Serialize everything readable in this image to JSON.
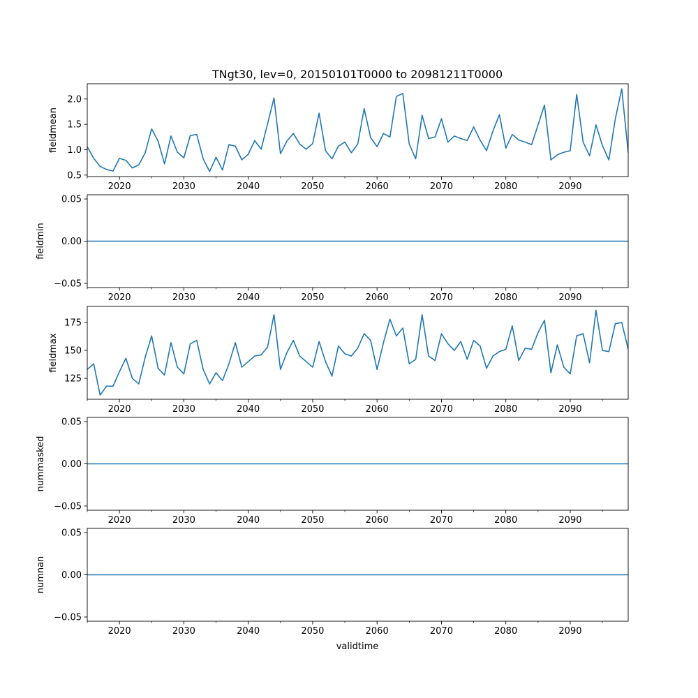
{
  "figure": {
    "title": "TNgt30, lev=0, 20150101T0000 to 20981211T0000",
    "xlabel": "validtime",
    "line_color": "#1f77b4"
  },
  "chart_data": [
    {
      "type": "line",
      "ylabel": "fieldmean",
      "xlim": [
        2015,
        2099
      ],
      "ylim": [
        0.47,
        2.3
      ],
      "x_ticks": [
        2020,
        2030,
        2040,
        2050,
        2060,
        2070,
        2080,
        2090
      ],
      "x_tick_labels": [
        "2020",
        "2030",
        "2040",
        "2050",
        "2060",
        "2070",
        "2080",
        "2090"
      ],
      "y_ticks": [
        0.5,
        1.0,
        1.5,
        2.0
      ],
      "y_tick_labels": [
        "0.5",
        "1.0",
        "1.5",
        "2.0"
      ],
      "x": [
        2015,
        2016,
        2017,
        2018,
        2019,
        2020,
        2021,
        2022,
        2023,
        2024,
        2025,
        2026,
        2027,
        2028,
        2029,
        2030,
        2031,
        2032,
        2033,
        2034,
        2035,
        2036,
        2037,
        2038,
        2039,
        2040,
        2041,
        2042,
        2043,
        2044,
        2045,
        2046,
        2047,
        2048,
        2049,
        2050,
        2051,
        2052,
        2053,
        2054,
        2055,
        2056,
        2057,
        2058,
        2059,
        2060,
        2061,
        2062,
        2063,
        2064,
        2065,
        2066,
        2067,
        2068,
        2069,
        2070,
        2071,
        2072,
        2073,
        2074,
        2075,
        2076,
        2077,
        2078,
        2079,
        2080,
        2081,
        2082,
        2083,
        2084,
        2085,
        2086,
        2087,
        2088,
        2089,
        2090,
        2091,
        2092,
        2093,
        2094,
        2095,
        2096,
        2097,
        2098,
        2099
      ],
      "values": [
        1.06,
        0.83,
        0.67,
        0.61,
        0.58,
        0.83,
        0.79,
        0.64,
        0.7,
        0.94,
        1.41,
        1.17,
        0.72,
        1.27,
        0.95,
        0.84,
        1.28,
        1.3,
        0.82,
        0.57,
        0.85,
        0.6,
        1.1,
        1.07,
        0.8,
        0.91,
        1.18,
        1.01,
        1.51,
        2.02,
        0.92,
        1.17,
        1.32,
        1.11,
        1.01,
        1.12,
        1.72,
        0.98,
        0.82,
        1.07,
        1.15,
        0.94,
        1.11,
        1.81,
        1.24,
        1.06,
        1.32,
        1.25,
        2.05,
        2.11,
        1.11,
        0.82,
        1.68,
        1.22,
        1.25,
        1.61,
        1.15,
        1.27,
        1.22,
        1.18,
        1.45,
        1.19,
        0.98,
        1.37,
        1.69,
        1.03,
        1.3,
        1.19,
        1.15,
        1.1,
        1.49,
        1.88,
        0.8,
        0.9,
        0.95,
        0.98,
        2.09,
        1.15,
        0.88,
        1.49,
        1.08,
        0.8,
        1.61,
        2.2,
        0.94
      ]
    },
    {
      "type": "line",
      "ylabel": "fieldmin",
      "xlim": [
        2015,
        2099
      ],
      "ylim": [
        -0.055,
        0.055
      ],
      "x_ticks": [
        2020,
        2030,
        2040,
        2050,
        2060,
        2070,
        2080,
        2090
      ],
      "x_tick_labels": [
        "2020",
        "2030",
        "2040",
        "2050",
        "2060",
        "2070",
        "2080",
        "2090"
      ],
      "y_ticks": [
        -0.05,
        0.0,
        0.05
      ],
      "y_tick_labels": [
        "−0.05",
        "0.00",
        "0.05"
      ],
      "x": [
        2015,
        2099
      ],
      "values": [
        0,
        0
      ]
    },
    {
      "type": "line",
      "ylabel": "fieldmax",
      "xlim": [
        2015,
        2099
      ],
      "ylim": [
        106.3,
        189.4
      ],
      "x_ticks": [
        2020,
        2030,
        2040,
        2050,
        2060,
        2070,
        2080,
        2090
      ],
      "x_tick_labels": [
        "2020",
        "2030",
        "2040",
        "2050",
        "2060",
        "2070",
        "2080",
        "2090"
      ],
      "y_ticks": [
        125,
        150,
        175
      ],
      "y_tick_labels": [
        "125",
        "150",
        "175"
      ],
      "x": [
        2015,
        2016,
        2017,
        2018,
        2019,
        2020,
        2021,
        2022,
        2023,
        2024,
        2025,
        2026,
        2027,
        2028,
        2029,
        2030,
        2031,
        2032,
        2033,
        2034,
        2035,
        2036,
        2037,
        2038,
        2039,
        2040,
        2041,
        2042,
        2043,
        2044,
        2045,
        2046,
        2047,
        2048,
        2049,
        2050,
        2051,
        2052,
        2053,
        2054,
        2055,
        2056,
        2057,
        2058,
        2059,
        2060,
        2061,
        2062,
        2063,
        2064,
        2065,
        2066,
        2067,
        2068,
        2069,
        2070,
        2071,
        2072,
        2073,
        2074,
        2075,
        2076,
        2077,
        2078,
        2079,
        2080,
        2081,
        2082,
        2083,
        2084,
        2085,
        2086,
        2087,
        2088,
        2089,
        2090,
        2091,
        2092,
        2093,
        2094,
        2095,
        2096,
        2097,
        2098,
        2099
      ],
      "values": [
        133,
        138,
        110,
        118,
        118,
        131,
        143,
        125,
        120,
        144,
        163,
        134,
        128,
        157,
        135,
        129,
        156,
        159,
        133,
        120,
        130,
        123,
        138,
        157,
        135,
        140,
        145,
        146,
        153,
        182,
        133,
        148,
        159,
        145,
        140,
        135,
        158,
        140,
        127,
        154,
        147,
        145,
        152,
        165,
        159,
        133,
        157,
        178,
        163,
        170,
        138,
        142,
        182,
        145,
        141,
        165,
        156,
        150,
        158,
        142,
        159,
        154,
        134,
        145,
        149,
        151,
        172,
        141,
        152,
        151,
        166,
        177,
        130,
        155,
        135,
        129,
        163,
        165,
        139,
        186,
        150,
        149,
        174,
        175,
        151
      ]
    },
    {
      "type": "line",
      "ylabel": "nummasked",
      "xlim": [
        2015,
        2099
      ],
      "ylim": [
        -0.055,
        0.055
      ],
      "x_ticks": [
        2020,
        2030,
        2040,
        2050,
        2060,
        2070,
        2080,
        2090
      ],
      "x_tick_labels": [
        "2020",
        "2030",
        "2040",
        "2050",
        "2060",
        "2070",
        "2080",
        "2090"
      ],
      "y_ticks": [
        -0.05,
        0.0,
        0.05
      ],
      "y_tick_labels": [
        "−0.05",
        "0.00",
        "0.05"
      ],
      "x": [
        2015,
        2099
      ],
      "values": [
        0,
        0
      ]
    },
    {
      "type": "line",
      "ylabel": "numnan",
      "xlim": [
        2015,
        2099
      ],
      "ylim": [
        -0.055,
        0.055
      ],
      "x_ticks": [
        2020,
        2030,
        2040,
        2050,
        2060,
        2070,
        2080,
        2090
      ],
      "x_tick_labels": [
        "2020",
        "2030",
        "2040",
        "2050",
        "2060",
        "2070",
        "2080",
        "2090"
      ],
      "y_ticks": [
        -0.05,
        0.0,
        0.05
      ],
      "y_tick_labels": [
        "−0.05",
        "0.00",
        "0.05"
      ],
      "x": [
        2015,
        2099
      ],
      "values": [
        0,
        0
      ]
    }
  ]
}
